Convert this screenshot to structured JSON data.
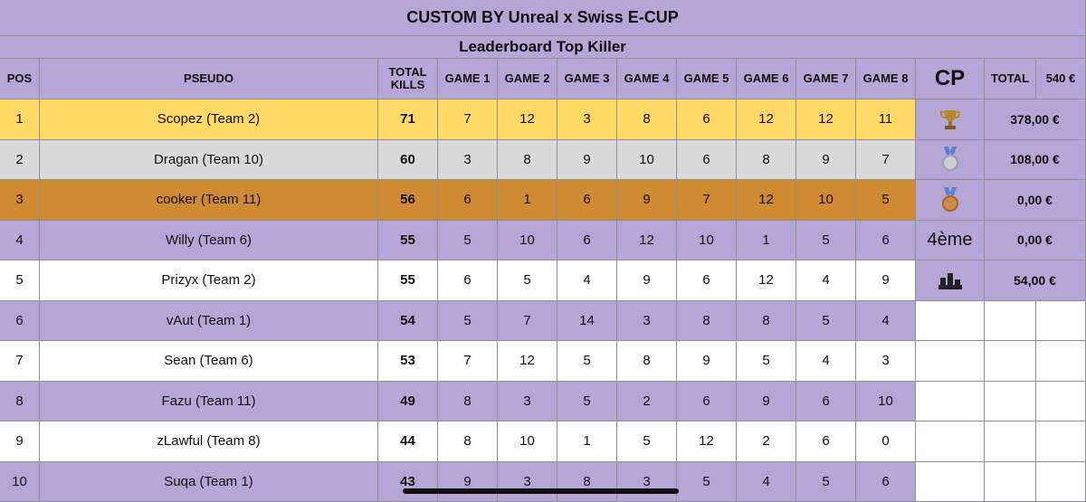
{
  "header": {
    "title": "CUSTOM BY Unreal x Swiss E-CUP",
    "subtitle": "Leaderboard Top Killer"
  },
  "table": {
    "columns": [
      "POS",
      "PSEUDO",
      "TOTAL KILLS",
      "GAME 1",
      "GAME 2",
      "GAME 3",
      "GAME 4",
      "GAME 5",
      "GAME 6",
      "GAME 7",
      "GAME 8"
    ],
    "rows": [
      [
        1,
        "Scopez (Team 2)",
        71,
        7,
        12,
        3,
        8,
        6,
        12,
        12,
        11
      ],
      [
        2,
        "Dragan (Team 10)",
        60,
        3,
        8,
        9,
        10,
        6,
        8,
        9,
        7
      ],
      [
        3,
        "cooker (Team 11)",
        56,
        6,
        1,
        6,
        9,
        7,
        12,
        10,
        5
      ],
      [
        4,
        "Willy (Team 6)",
        55,
        5,
        10,
        6,
        12,
        10,
        1,
        5,
        6
      ],
      [
        5,
        "Prizyx (Team 2)",
        55,
        6,
        5,
        4,
        9,
        6,
        12,
        4,
        9
      ],
      [
        6,
        "vAut (Team 1)",
        54,
        5,
        7,
        14,
        3,
        8,
        8,
        5,
        4
      ],
      [
        7,
        "Sean (Team 6)",
        53,
        7,
        12,
        5,
        8,
        9,
        5,
        4,
        3
      ],
      [
        8,
        "Fazu (Team 11)",
        49,
        8,
        3,
        5,
        2,
        6,
        9,
        6,
        10
      ],
      [
        9,
        "zLawful (Team 8)",
        44,
        8,
        10,
        1,
        5,
        12,
        2,
        6,
        0
      ],
      [
        10,
        "Suqa (Team 1)",
        43,
        9,
        3,
        8,
        3,
        5,
        4,
        5,
        6
      ]
    ]
  },
  "prizes": {
    "headers": [
      "CP",
      "TOTAL",
      "540 €"
    ],
    "rows": [
      {
        "amount": "378,00 €"
      },
      {
        "amount": "108,00 €"
      },
      {
        "amount": "0,00 €"
      },
      {
        "place": "4ème",
        "amount": "0,00 €"
      },
      {
        "amount": "54,00 €"
      }
    ]
  }
}
